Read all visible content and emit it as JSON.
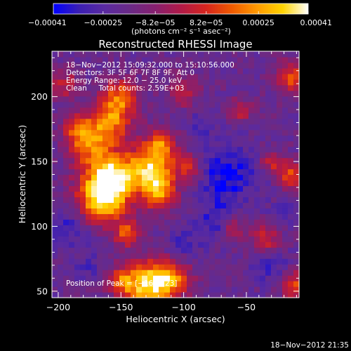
{
  "chart_data": {
    "type": "heatmap",
    "title": "Reconstructed RHESSI Image",
    "xlabel": "Heliocentric X (arcsec)",
    "ylabel": "Heliocentric Y (arcsec)",
    "xlim": [
      -205,
      -8
    ],
    "ylim": [
      45,
      235
    ],
    "x_ticks": [
      -200,
      -150,
      -100,
      -50
    ],
    "x_tick_labels": [
      "−200",
      "−150",
      "−100",
      "−50"
    ],
    "y_ticks": [
      50,
      100,
      150,
      200
    ],
    "y_tick_labels": [
      "50",
      "100",
      "150",
      "200"
    ],
    "colorbar": {
      "min": -0.00041,
      "max": 0.00041,
      "ticks": [
        -0.00041,
        -0.00025,
        -8.2e-05,
        8.2e-05,
        0.00025,
        0.00041
      ],
      "tick_labels": [
        "−0.00041",
        "−0.00025",
        "−8.2e−05",
        "8.2e−05",
        "0.00025",
        "0.00041"
      ],
      "unit_label": "(photons cm⁻² s⁻¹ asec⁻²)",
      "colors": [
        "#0000ff",
        "#3b1fb3",
        "#5a2aa0",
        "#6a2a86",
        "#86206f",
        "#b01a48",
        "#d6251e",
        "#f05a00",
        "#ff9a00",
        "#ffd400",
        "#ffffff"
      ]
    },
    "annotations": [
      "18−Nov−2012 15:09:32.000 to 15:10:56.000",
      "Detectors: 3F 5F 6F 7F 8F 9F, Att 0",
      "Energy Range: 12.0 − 25.0 keV",
      "Clean     Total counts: 2.59E+03"
    ],
    "peak_label": "Position of Peak = [−165,123]",
    "peak": [
      -165,
      123
    ],
    "grid": false,
    "bright_sources": [
      {
        "x": -165,
        "y": 123,
        "sigma": 14,
        "amp": 1.0
      },
      {
        "x": -155,
        "y": 140,
        "sigma": 12,
        "amp": 0.7
      },
      {
        "x": -175,
        "y": 160,
        "sigma": 11,
        "amp": 0.5
      },
      {
        "x": -160,
        "y": 180,
        "sigma": 12,
        "amp": 0.65
      },
      {
        "x": -150,
        "y": 200,
        "sigma": 10,
        "amp": 0.55
      },
      {
        "x": -185,
        "y": 175,
        "sigma": 9,
        "amp": 0.45
      },
      {
        "x": -195,
        "y": 210,
        "sigma": 8,
        "amp": 0.35
      },
      {
        "x": -125,
        "y": 145,
        "sigma": 13,
        "amp": 0.85
      },
      {
        "x": -120,
        "y": 125,
        "sigma": 9,
        "amp": 0.55
      },
      {
        "x": -118,
        "y": 165,
        "sigma": 8,
        "amp": 0.5
      },
      {
        "x": -145,
        "y": 95,
        "sigma": 7,
        "amp": 0.55
      },
      {
        "x": -130,
        "y": 55,
        "sigma": 12,
        "amp": 0.85
      },
      {
        "x": -110,
        "y": 60,
        "sigma": 11,
        "amp": 0.65
      },
      {
        "x": -150,
        "y": 58,
        "sigma": 8,
        "amp": 0.45
      },
      {
        "x": -100,
        "y": 205,
        "sigma": 9,
        "amp": 0.35
      },
      {
        "x": -95,
        "y": 145,
        "sigma": 7,
        "amp": 0.4
      },
      {
        "x": -55,
        "y": 190,
        "sigma": 6,
        "amp": 0.4
      },
      {
        "x": -15,
        "y": 215,
        "sigma": 8,
        "amp": 0.55
      },
      {
        "x": -15,
        "y": 140,
        "sigma": 7,
        "amp": 0.5
      },
      {
        "x": -30,
        "y": 150,
        "sigma": 6,
        "amp": 0.4
      },
      {
        "x": -35,
        "y": 90,
        "sigma": 8,
        "amp": 0.45
      },
      {
        "x": -60,
        "y": 100,
        "sigma": 6,
        "amp": 0.35
      },
      {
        "x": -12,
        "y": 55,
        "sigma": 8,
        "amp": 0.5
      }
    ],
    "dark_sources": [
      {
        "x": -65,
        "y": 140,
        "sigma": 16,
        "amp": 0.9
      },
      {
        "x": -75,
        "y": 105,
        "sigma": 10,
        "amp": 0.6
      },
      {
        "x": -190,
        "y": 100,
        "sigma": 12,
        "amp": 0.6
      },
      {
        "x": -100,
        "y": 85,
        "sigma": 10,
        "amp": 0.5
      },
      {
        "x": -30,
        "y": 70,
        "sigma": 10,
        "amp": 0.55
      },
      {
        "x": -20,
        "y": 110,
        "sigma": 7,
        "amp": 0.5
      },
      {
        "x": -85,
        "y": 180,
        "sigma": 9,
        "amp": 0.4
      },
      {
        "x": -175,
        "y": 70,
        "sigma": 8,
        "amp": 0.4
      }
    ]
  },
  "footer": {
    "timestamp": "18−Nov−2012 21:35"
  }
}
